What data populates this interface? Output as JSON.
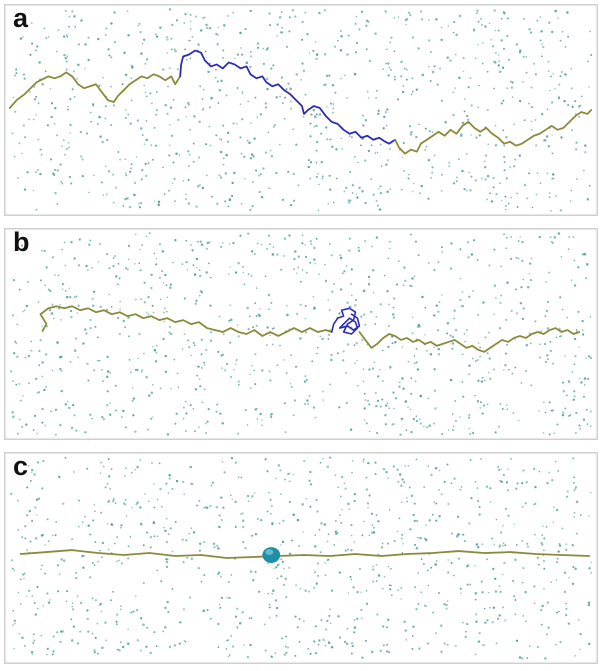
{
  "figure": {
    "panels": [
      {
        "label": "a",
        "particle_color": "#4f9e98",
        "chain_color": "#8a8a3a",
        "highlight_color": "#2b2bb8"
      },
      {
        "label": "b",
        "particle_color": "#4f9e98",
        "chain_color": "#8a8a3a",
        "highlight_color": "#2b2bb8"
      },
      {
        "label": "c",
        "particle_color": "#4f9e98",
        "chain_color": "#8a8a3a",
        "highlight_color": "#1f8fa8"
      }
    ]
  }
}
